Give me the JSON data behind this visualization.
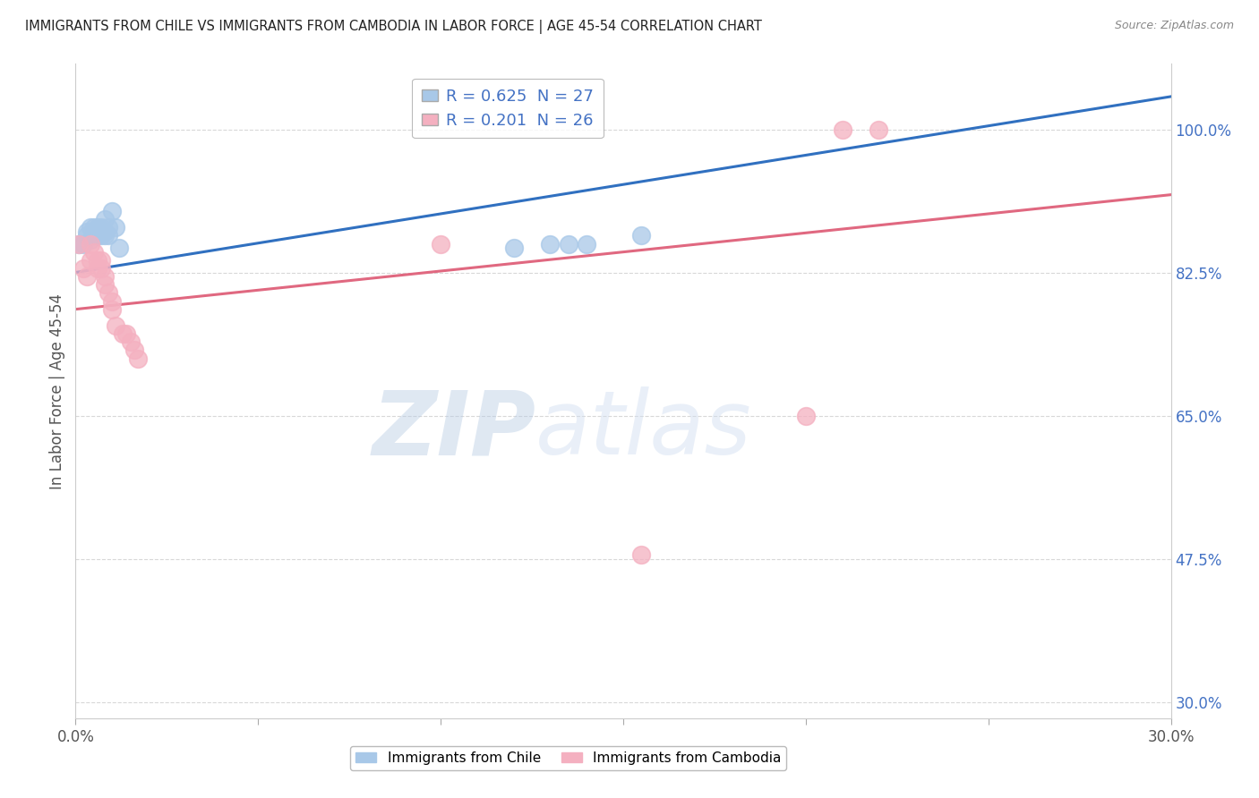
{
  "title": "IMMIGRANTS FROM CHILE VS IMMIGRANTS FROM CAMBODIA IN LABOR FORCE | AGE 45-54 CORRELATION CHART",
  "source": "Source: ZipAtlas.com",
  "ylabel": "In Labor Force | Age 45-54",
  "xlim": [
    0.0,
    0.3
  ],
  "ylim": [
    0.28,
    1.08
  ],
  "xticks": [
    0.0,
    0.05,
    0.1,
    0.15,
    0.2,
    0.25,
    0.3
  ],
  "xticklabels": [
    "0.0%",
    "",
    "",
    "",
    "",
    "",
    "30.0%"
  ],
  "yticks_right": [
    1.0,
    0.825,
    0.65,
    0.475,
    0.3
  ],
  "yticklabels_right": [
    "100.0%",
    "82.5%",
    "65.0%",
    "47.5%",
    "30.0%"
  ],
  "chile_color": "#a8c8e8",
  "cambodia_color": "#f4b0c0",
  "chile_line_color": "#3070c0",
  "cambodia_line_color": "#e06880",
  "R_chile": 0.625,
  "N_chile": 27,
  "R_cambodia": 0.201,
  "N_cambodia": 26,
  "chile_x": [
    0.001,
    0.002,
    0.003,
    0.003,
    0.004,
    0.004,
    0.005,
    0.005,
    0.005,
    0.006,
    0.006,
    0.007,
    0.007,
    0.007,
    0.008,
    0.008,
    0.008,
    0.009,
    0.009,
    0.01,
    0.011,
    0.012,
    0.12,
    0.13,
    0.135,
    0.14,
    0.155
  ],
  "chile_y": [
    0.86,
    0.86,
    0.87,
    0.875,
    0.865,
    0.88,
    0.87,
    0.87,
    0.88,
    0.87,
    0.88,
    0.875,
    0.88,
    0.87,
    0.89,
    0.875,
    0.87,
    0.88,
    0.87,
    0.9,
    0.88,
    0.855,
    0.855,
    0.86,
    0.86,
    0.86,
    0.87
  ],
  "cambodia_x": [
    0.001,
    0.002,
    0.003,
    0.004,
    0.004,
    0.005,
    0.006,
    0.006,
    0.007,
    0.007,
    0.008,
    0.008,
    0.009,
    0.01,
    0.01,
    0.011,
    0.013,
    0.014,
    0.015,
    0.016,
    0.017,
    0.1,
    0.155,
    0.2,
    0.21,
    0.22
  ],
  "cambodia_y": [
    0.86,
    0.83,
    0.82,
    0.86,
    0.84,
    0.85,
    0.84,
    0.83,
    0.83,
    0.84,
    0.82,
    0.81,
    0.8,
    0.79,
    0.78,
    0.76,
    0.75,
    0.75,
    0.74,
    0.73,
    0.72,
    0.86,
    0.48,
    0.65,
    1.0,
    1.0
  ],
  "chile_line": {
    "x0": 0.0,
    "y0": 0.825,
    "x1": 0.3,
    "y1": 1.04
  },
  "cambodia_line": {
    "x0": 0.0,
    "y0": 0.78,
    "x1": 0.3,
    "y1": 0.92
  },
  "legend_label_chile": "Immigrants from Chile",
  "legend_label_cambodia": "Immigrants from Cambodia",
  "watermark_zip": "ZIP",
  "watermark_atlas": "atlas",
  "background_color": "#ffffff",
  "grid_color": "#d8d8d8"
}
